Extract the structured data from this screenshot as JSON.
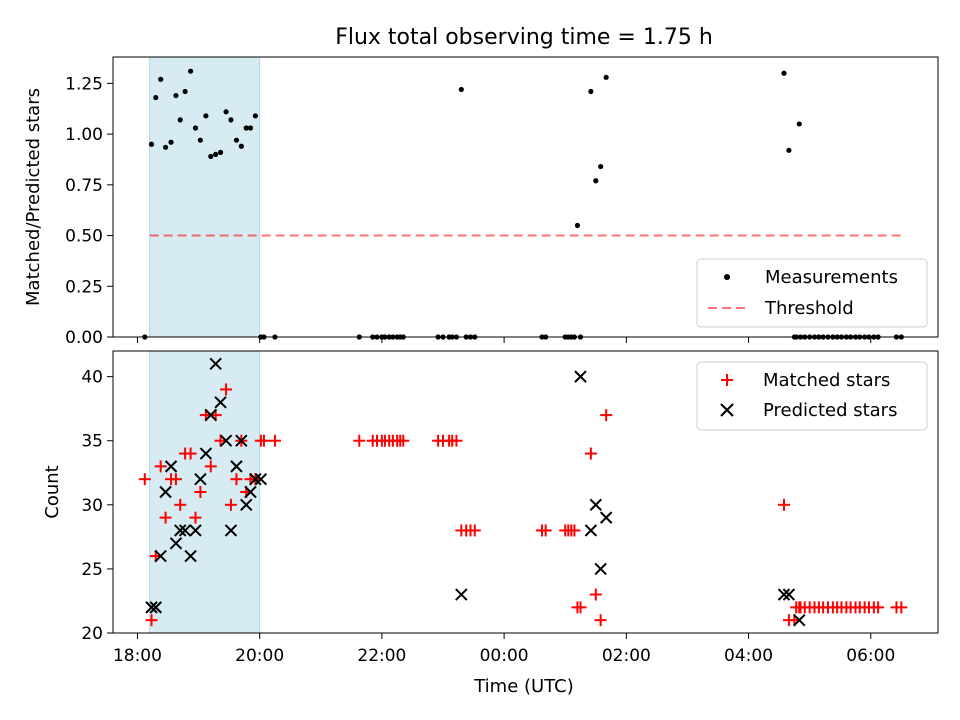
{
  "chart_data": [
    {
      "type": "scatter",
      "title": "Flux total observing time = 1.75 h",
      "xlabel": "",
      "ylabel": "Matched/Predicted stars",
      "xlim": [
        17.6,
        31.1
      ],
      "ylim": [
        0,
        1.38
      ],
      "yticks": [
        0,
        0.25,
        0.5,
        0.75,
        1.0,
        1.25
      ],
      "ytick_labels": [
        "0.00",
        "0.25",
        "0.50",
        "0.75",
        "1.00",
        "1.25"
      ],
      "highlight_span": [
        18.2,
        20.0
      ],
      "highlight_color": "#add8e6",
      "threshold": {
        "y": 0.5,
        "x_range": [
          18.2,
          30.5
        ],
        "label": "Threshold",
        "color": "#ff0000",
        "style": "dashed"
      },
      "legend": {
        "placement": "lower right",
        "entries": [
          "Measurements",
          "Threshold"
        ]
      },
      "series": [
        {
          "name": "Measurements",
          "marker": "dot",
          "color": "#000000",
          "x": [
            18.12,
            18.23,
            18.3,
            18.38,
            18.46,
            18.55,
            18.63,
            18.7,
            18.78,
            18.87,
            18.95,
            19.03,
            19.12,
            19.2,
            19.28,
            19.36,
            19.45,
            19.53,
            19.62,
            19.7,
            19.78,
            19.85,
            19.93,
            20.02,
            20.07,
            20.25,
            21.63,
            21.85,
            21.92,
            22.0,
            22.05,
            22.12,
            22.18,
            22.25,
            22.3,
            22.35,
            22.92,
            23.0,
            23.1,
            23.15,
            23.22,
            23.3,
            23.38,
            23.45,
            23.52,
            24.62,
            24.68,
            25.0,
            25.05,
            25.1,
            25.15,
            25.2,
            25.25,
            25.42,
            25.5,
            25.58,
            25.67,
            28.58,
            28.66,
            28.83,
            28.75,
            28.78,
            28.85,
            28.92,
            29.0,
            29.08,
            29.15,
            29.22,
            29.3,
            29.38,
            29.45,
            29.52,
            29.6,
            29.67,
            29.75,
            29.82,
            29.9,
            29.97,
            30.05,
            30.12,
            30.42,
            30.5
          ],
          "y": [
            0.0,
            0.95,
            1.18,
            1.27,
            0.935,
            0.96,
            1.19,
            1.07,
            1.21,
            1.31,
            1.03,
            0.97,
            1.09,
            0.89,
            0.9,
            0.91,
            1.11,
            1.07,
            0.97,
            0.94,
            1.03,
            1.03,
            1.09,
            0.0,
            0.0,
            0.0,
            0.0,
            0.0,
            0.0,
            0.0,
            0.0,
            0.0,
            0.0,
            0.0,
            0.0,
            0.0,
            0.0,
            0.0,
            0.0,
            0.0,
            0.0,
            1.22,
            0.0,
            0.0,
            0.0,
            0.0,
            0.0,
            0.0,
            0.0,
            0.0,
            0.0,
            0.55,
            0.0,
            1.21,
            0.77,
            0.84,
            1.28,
            1.3,
            0.92,
            1.05,
            0.0,
            0.0,
            0.0,
            0.0,
            0.0,
            0.0,
            0.0,
            0.0,
            0.0,
            0.0,
            0.0,
            0.0,
            0.0,
            0.0,
            0.0,
            0.0,
            0.0,
            0.0,
            0.0,
            0.0,
            0.0,
            0.0
          ]
        }
      ]
    },
    {
      "type": "scatter",
      "title": "",
      "xlabel": "Time (UTC)",
      "ylabel": "Count",
      "xlim": [
        17.6,
        31.1
      ],
      "ylim": [
        20,
        42
      ],
      "yticks": [
        20,
        25,
        30,
        35,
        40
      ],
      "xticks": [
        18,
        20,
        22,
        24,
        26,
        28,
        30
      ],
      "xtick_labels": [
        "18:00",
        "20:00",
        "22:00",
        "00:00",
        "02:00",
        "04:00",
        "06:00"
      ],
      "highlight_span": [
        18.2,
        20.0
      ],
      "highlight_color": "#add8e6",
      "legend": {
        "placement": "upper right",
        "entries": [
          "Matched stars",
          "Predicted stars"
        ]
      },
      "series": [
        {
          "name": "Matched stars",
          "marker": "plus",
          "color": "#ff0000",
          "x": [
            18.12,
            18.23,
            18.3,
            18.38,
            18.46,
            18.55,
            18.63,
            18.7,
            18.78,
            18.87,
            18.95,
            19.03,
            19.12,
            19.2,
            19.28,
            19.36,
            19.45,
            19.53,
            19.62,
            19.7,
            19.78,
            19.85,
            19.93,
            20.02,
            20.07,
            20.25,
            21.63,
            21.85,
            21.92,
            22.0,
            22.05,
            22.12,
            22.18,
            22.25,
            22.3,
            22.35,
            22.92,
            23.0,
            23.1,
            23.15,
            23.22,
            23.3,
            23.38,
            23.45,
            23.52,
            24.62,
            24.68,
            25.0,
            25.05,
            25.1,
            25.15,
            25.2,
            25.25,
            25.42,
            25.5,
            25.58,
            25.67,
            28.58,
            28.66,
            28.83,
            28.75,
            28.78,
            28.85,
            28.92,
            29.0,
            29.08,
            29.15,
            29.22,
            29.3,
            29.38,
            29.45,
            29.52,
            29.6,
            29.67,
            29.75,
            29.82,
            29.9,
            29.97,
            30.05,
            30.12,
            30.42,
            30.5
          ],
          "y": [
            32,
            21,
            26,
            33,
            29,
            32,
            32,
            30,
            34,
            34,
            29,
            31,
            37,
            33,
            37,
            35,
            39,
            30,
            32,
            35,
            31,
            32,
            32,
            35,
            35,
            35,
            35,
            35,
            35,
            35,
            35,
            35,
            35,
            35,
            35,
            35,
            35,
            35,
            35,
            35,
            35,
            28,
            28,
            28,
            28,
            28,
            28,
            28,
            28,
            28,
            28,
            22,
            22,
            34,
            23,
            21,
            37,
            30,
            21,
            22,
            21,
            22,
            22,
            22,
            22,
            22,
            22,
            22,
            22,
            22,
            22,
            22,
            22,
            22,
            22,
            22,
            22,
            22,
            22,
            22,
            22,
            22
          ]
        },
        {
          "name": "Predicted stars",
          "marker": "x",
          "color": "#000000",
          "x": [
            18.23,
            18.3,
            18.38,
            18.46,
            18.55,
            18.63,
            18.7,
            18.78,
            18.87,
            18.95,
            19.03,
            19.12,
            19.2,
            19.28,
            19.36,
            19.45,
            19.53,
            19.62,
            19.7,
            19.78,
            19.85,
            19.93,
            20.02,
            23.3,
            25.25,
            25.42,
            25.5,
            25.58,
            25.67,
            28.58,
            28.66,
            28.83
          ],
          "y": [
            22,
            22,
            26,
            31,
            33,
            27,
            28,
            28,
            26,
            28,
            32,
            34,
            37,
            41,
            38,
            35,
            28,
            33,
            35,
            30,
            31,
            32,
            32,
            23,
            40,
            28,
            30,
            25,
            29,
            23,
            23,
            21
          ]
        }
      ]
    }
  ]
}
